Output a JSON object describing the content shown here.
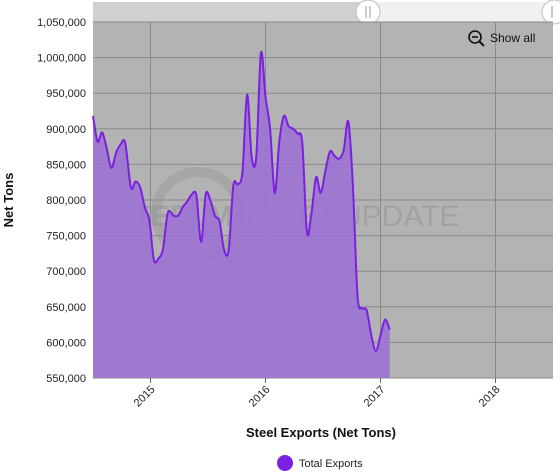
{
  "chart_data": {
    "type": "area",
    "title": "",
    "xlabel": "Steel Exports (Net Tons)",
    "ylabel": "Net Tons",
    "ylim": [
      550000,
      1050000
    ],
    "yticks": [
      "550,000",
      "600,000",
      "650,000",
      "700,000",
      "750,000",
      "800,000",
      "850,000",
      "900,000",
      "950,000",
      "1,000,000",
      "1,050,000"
    ],
    "xticks": [
      {
        "label": "2015",
        "year": 2015.0
      },
      {
        "label": "2016",
        "year": 2016.0
      },
      {
        "label": "2017",
        "year": 2017.0
      },
      {
        "label": "2018",
        "year": 2018.0
      }
    ],
    "xlim": [
      2014.5,
      2018.5
    ],
    "grid": true,
    "legend": "bottom",
    "colors": {
      "line": "#7b1fe0",
      "fill": "#9d74d3",
      "plot_bg": "#b3b3b3",
      "grid": "#8a8a8a"
    },
    "series": [
      {
        "name": "Total Exports",
        "points": [
          [
            2014.5,
            918000
          ],
          [
            2014.54,
            882000
          ],
          [
            2014.58,
            895000
          ],
          [
            2014.62,
            872000
          ],
          [
            2014.66,
            845000
          ],
          [
            2014.7,
            866000
          ],
          [
            2014.74,
            878000
          ],
          [
            2014.78,
            880000
          ],
          [
            2014.83,
            818000
          ],
          [
            2014.87,
            826000
          ],
          [
            2014.91,
            818000
          ],
          [
            2014.95,
            790000
          ],
          [
            2014.99,
            771000
          ],
          [
            2015.03,
            716000
          ],
          [
            2015.07,
            718000
          ],
          [
            2015.11,
            732000
          ],
          [
            2015.15,
            782000
          ],
          [
            2015.2,
            778000
          ],
          [
            2015.24,
            778000
          ],
          [
            2015.28,
            790000
          ],
          [
            2015.32,
            798000
          ],
          [
            2015.36,
            808000
          ],
          [
            2015.4,
            806000
          ],
          [
            2015.44,
            741000
          ],
          [
            2015.48,
            808000
          ],
          [
            2015.52,
            800000
          ],
          [
            2015.56,
            778000
          ],
          [
            2015.6,
            770000
          ],
          [
            2015.64,
            730000
          ],
          [
            2015.68,
            730000
          ],
          [
            2015.72,
            820000
          ],
          [
            2015.76,
            822000
          ],
          [
            2015.8,
            840000
          ],
          [
            2015.84,
            948000
          ],
          [
            2015.88,
            860000
          ],
          [
            2015.92,
            862000
          ],
          [
            2015.96,
            1006000
          ],
          [
            2016.0,
            945000
          ],
          [
            2016.04,
            900000
          ],
          [
            2016.08,
            810000
          ],
          [
            2016.12,
            882000
          ],
          [
            2016.16,
            918000
          ],
          [
            2016.2,
            904000
          ],
          [
            2016.24,
            900000
          ],
          [
            2016.28,
            893000
          ],
          [
            2016.32,
            880000
          ],
          [
            2016.36,
            755000
          ],
          [
            2016.4,
            782000
          ],
          [
            2016.44,
            832000
          ],
          [
            2016.48,
            810000
          ],
          [
            2016.52,
            840000
          ],
          [
            2016.56,
            868000
          ],
          [
            2016.6,
            862000
          ],
          [
            2016.64,
            858000
          ],
          [
            2016.68,
            870000
          ],
          [
            2016.72,
            910000
          ],
          [
            2016.76,
            820000
          ],
          [
            2016.8,
            666000
          ],
          [
            2016.84,
            648000
          ],
          [
            2016.88,
            645000
          ],
          [
            2016.92,
            610000
          ],
          [
            2016.96,
            588000
          ],
          [
            2017.0,
            610000
          ],
          [
            2017.04,
            632000
          ],
          [
            2017.08,
            618000
          ]
        ]
      }
    ]
  },
  "scrollbar": {
    "left_handle_icon": "grip-icon",
    "right_handle_icon": "grip-icon"
  },
  "zoom": {
    "label": "Show all",
    "icon": "zoom-out-icon"
  },
  "watermark": {
    "part1": "STEEL",
    "part2": "MARKET",
    "part3": "UPDATE",
    "logo_icon": "swoosh-logo-icon"
  },
  "legend": {
    "label": "Total Exports"
  }
}
